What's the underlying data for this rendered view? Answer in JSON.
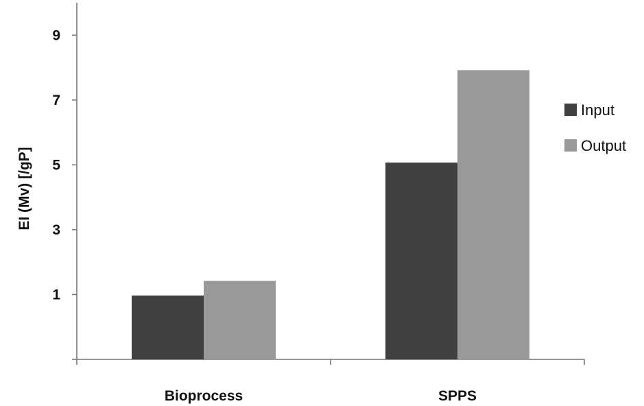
{
  "chart_data": {
    "type": "bar",
    "categories": [
      "Bioprocess",
      "SPPS"
    ],
    "series": [
      {
        "name": "Input",
        "values": [
          0.97,
          5.07
        ],
        "color": "#404040"
      },
      {
        "name": "Output",
        "values": [
          1.42,
          7.92
        ],
        "color": "#999999"
      }
    ],
    "xlabel": "",
    "ylabel": "EI (Mv) [/gP]",
    "ylim": [
      -1,
      10
    ],
    "yticks": [
      9,
      7,
      5,
      3,
      1
    ],
    "grid": false,
    "legend_position": "right"
  }
}
